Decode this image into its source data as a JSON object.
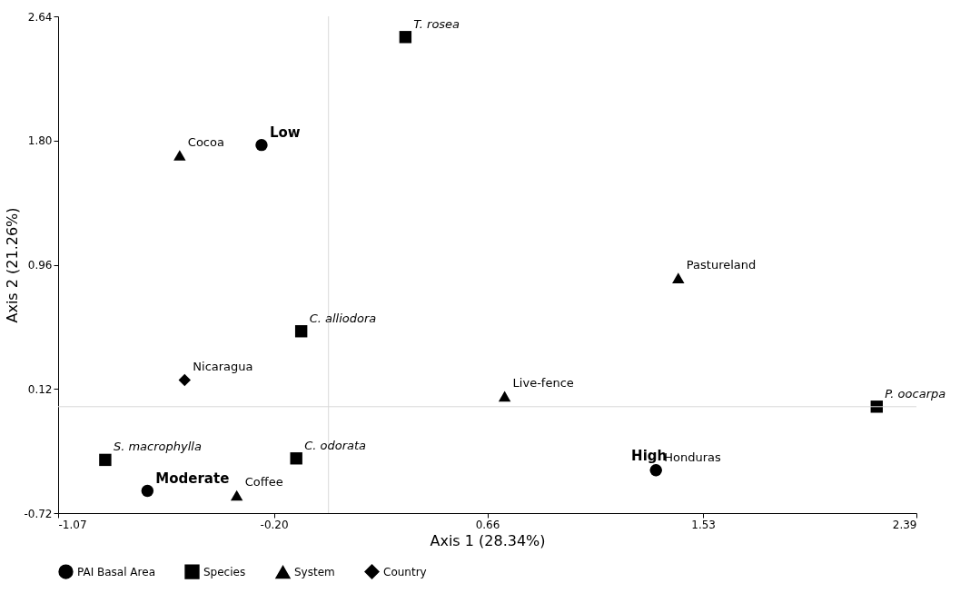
{
  "chart_data": {
    "type": "scatter",
    "xlabel": "Axis 1 (28.34%)",
    "ylabel": "Axis 2 (21.26%)",
    "xlim": [
      -1.07,
      2.39
    ],
    "ylim": [
      -0.72,
      2.64
    ],
    "xticks": [
      -1.07,
      {
        "value": -0.2,
        "label": "-0.20"
      },
      0.66,
      1.53,
      2.39
    ],
    "yticks": [
      -0.72,
      0.12,
      0.96,
      {
        "value": 1.8,
        "label": "1.80"
      },
      2.64
    ],
    "grid": false,
    "legend": "bottom",
    "ref_lines": [
      {
        "axis": "x",
        "value": 0.02,
        "color": "#d9d9d9"
      },
      {
        "axis": "y",
        "value": 0,
        "color": "#d9d9d9"
      }
    ],
    "series": [
      {
        "name": "PAI Basal Area",
        "color": "#000000",
        "marker": "circle",
        "x": [
          -0.25,
          1.34,
          -0.71
        ],
        "values": [
          1.77,
          -0.43,
          -0.57
        ],
        "value_labels": [
          "Low",
          "High",
          "Moderate"
        ]
      },
      {
        "name": "Species",
        "color": "#000000",
        "marker": "square",
        "x": [
          0.33,
          -0.09,
          2.23,
          -0.88,
          -0.11
        ],
        "values": [
          2.5,
          0.51,
          0.0,
          -0.36,
          -0.35
        ],
        "value_labels": [
          "T. rosea",
          "C. alliodora",
          "P. oocarpa",
          "S. macrophylla",
          "C. odorata"
        ]
      },
      {
        "name": "System",
        "color": "#000000",
        "marker": "triangle",
        "x": [
          -0.58,
          1.43,
          0.73,
          -0.35
        ],
        "values": [
          1.7,
          0.87,
          0.07,
          -0.6
        ],
        "value_labels": [
          "Cocoa",
          "Pastureland",
          "Live-fence",
          "Coffee"
        ]
      },
      {
        "name": "Country",
        "color": "#000000",
        "marker": "diamond",
        "x": [
          -0.56,
          1.34
        ],
        "values": [
          0.18,
          -0.43
        ],
        "value_labels": [
          "Nicaragua",
          "Honduras"
        ]
      }
    ]
  }
}
